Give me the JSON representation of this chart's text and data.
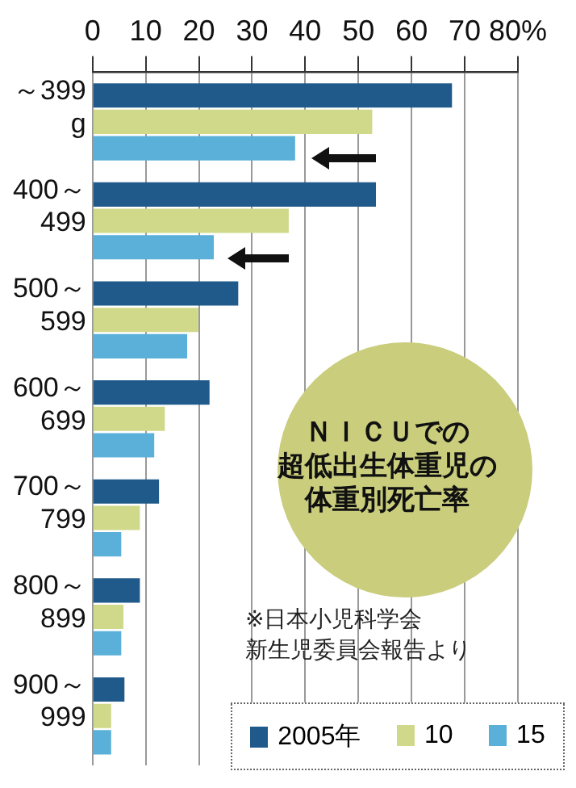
{
  "chart_data": {
    "type": "bar",
    "orientation": "horizontal",
    "title": "ＮＩＣＵでの超低出生体重児の体重別死亡率",
    "categories": [
      "～399 g",
      "400～ 499",
      "500～ 599",
      "600～ 699",
      "700～ 799",
      "800～ 899",
      "900～ 999"
    ],
    "series": [
      {
        "name": "2005年",
        "color": "#1f5a8a",
        "values": [
          67.6,
          53.3,
          27.4,
          22.0,
          12.5,
          8.9,
          6.0
        ]
      },
      {
        "name": "10",
        "color": "#d0d98a",
        "values": [
          52.6,
          36.9,
          19.9,
          13.6,
          8.9,
          5.8,
          3.5
        ]
      },
      {
        "name": "15",
        "color": "#5ab0d8",
        "values": [
          38.1,
          22.8,
          17.8,
          11.6,
          5.4,
          5.4,
          3.5
        ]
      }
    ],
    "xlim": [
      0,
      80
    ],
    "xticks": [
      0,
      10,
      20,
      30,
      40,
      50,
      60,
      70,
      {
        "value": 80,
        "label": "80%"
      }
    ],
    "grid": "x",
    "legend": "bottom right",
    "annotations": [
      "※日本小児科学会新生児委員会報告より"
    ]
  }
}
